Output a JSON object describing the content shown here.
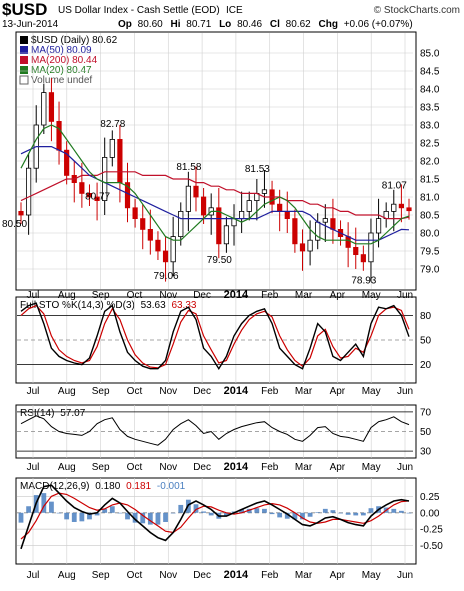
{
  "header": {
    "symbol": "$USD",
    "name": "US Dollar Index - Cash Settle (EOD)",
    "exchange": "ICE",
    "copyright": "© StockCharts.com",
    "date": "13-Jun-2014",
    "ohlc": [
      {
        "label": "Op",
        "value": "80.60"
      },
      {
        "label": "Hi",
        "value": "80.71"
      },
      {
        "label": "Lo",
        "value": "80.46"
      },
      {
        "label": "Cl",
        "value": "80.62"
      }
    ],
    "chg_label": "Chg",
    "chg_value": "+0.06 (+0.07%)"
  },
  "colors": {
    "price": "#000000",
    "up_candle": "#000000",
    "down_candle": "#cc0000",
    "ma50": "#1f1f9e",
    "ma200": "#c0102a",
    "ma20": "#1f7a1f",
    "stoch_k": "#000000",
    "stoch_d": "#cc0000",
    "rsi": "#000000",
    "macd_line": "#000000",
    "macd_signal": "#cc0000",
    "macd_hist": "#4a7fc0",
    "frame": "#000000",
    "grid": "#d0d0d0"
  },
  "legend": [
    {
      "label": "$USD (Daily) 80.62",
      "icon": "price-swatch"
    },
    {
      "label": "MA(50) 80.09",
      "icon": "ma50-swatch"
    },
    {
      "label": "MA(200) 80.44",
      "icon": "ma200-swatch"
    },
    {
      "label": "MA(20) 80.47",
      "icon": "ma20-swatch"
    },
    {
      "label": "Volume undef",
      "icon": "volume-swatch"
    }
  ],
  "x_labels": [
    "Jul",
    "Aug",
    "Sep",
    "Oct",
    "Nov",
    "Dec",
    "2014",
    "Feb",
    "Mar",
    "Apr",
    "May",
    "Jun"
  ],
  "chart_data": [
    {
      "type": "candlestick",
      "title": "$USD (Daily) 80.62",
      "ylim": [
        78.5,
        85.5
      ],
      "yticks": [
        "85.0",
        "84.5",
        "84.0",
        "83.5",
        "83.0",
        "82.5",
        "82.0",
        "81.5",
        "81.0",
        "80.5",
        "80.0",
        "79.5",
        "79.0"
      ],
      "annotations": [
        {
          "label": "80.50",
          "x": 0,
          "y": 80.5
        },
        {
          "label": "82.78",
          "x": 12,
          "y": 82.78
        },
        {
          "label": "80.77",
          "x": 10,
          "y": 80.77
        },
        {
          "label": "79.06",
          "x": 19,
          "y": 79.06
        },
        {
          "label": "81.58",
          "x": 22,
          "y": 81.58
        },
        {
          "label": "79.50",
          "x": 26,
          "y": 79.5
        },
        {
          "label": "81.53",
          "x": 31,
          "y": 81.53
        },
        {
          "label": "78.93",
          "x": 45,
          "y": 78.93
        },
        {
          "label": "81.07",
          "x": 49,
          "y": 81.07
        }
      ],
      "close": [
        80.5,
        81.8,
        83.0,
        83.9,
        83.1,
        82.3,
        81.6,
        81.4,
        81.1,
        81.0,
        80.9,
        82.1,
        82.6,
        81.4,
        80.7,
        80.4,
        80.1,
        79.8,
        79.5,
        79.2,
        79.9,
        80.6,
        81.3,
        81.0,
        80.5,
        80.7,
        79.7,
        80.2,
        80.4,
        80.6,
        80.9,
        81.1,
        81.2,
        80.8,
        80.6,
        80.4,
        79.7,
        79.5,
        79.8,
        80.3,
        80.4,
        80.1,
        79.9,
        79.6,
        79.4,
        79.2,
        80.0,
        80.4,
        80.6,
        80.8,
        80.7,
        80.62
      ],
      "ma50": [
        82.2,
        82.3,
        82.4,
        82.4,
        82.4,
        82.3,
        82.2,
        82.0,
        81.8,
        81.6,
        81.5,
        81.4,
        81.3,
        81.2,
        81.1,
        81.0,
        80.9,
        80.8,
        80.7,
        80.6,
        80.5,
        80.4,
        80.4,
        80.4,
        80.4,
        80.4,
        80.4,
        80.4,
        80.4,
        80.4,
        80.4,
        80.4,
        80.5,
        80.6,
        80.6,
        80.6,
        80.6,
        80.6,
        80.5,
        80.3,
        80.2,
        80.1,
        80.0,
        79.9,
        79.8,
        79.8,
        79.8,
        79.8,
        79.9,
        80.0,
        80.1,
        80.09
      ],
      "ma200": [
        80.9,
        81.0,
        81.1,
        81.2,
        81.3,
        81.4,
        81.5,
        81.5,
        81.6,
        81.6,
        81.6,
        81.7,
        81.7,
        81.7,
        81.7,
        81.7,
        81.6,
        81.6,
        81.6,
        81.6,
        81.5,
        81.5,
        81.5,
        81.4,
        81.4,
        81.3,
        81.3,
        81.2,
        81.2,
        81.1,
        81.1,
        81.1,
        81.0,
        81.0,
        81.0,
        80.9,
        80.9,
        80.9,
        80.8,
        80.8,
        80.7,
        80.7,
        80.6,
        80.6,
        80.5,
        80.5,
        80.5,
        80.5,
        80.4,
        80.4,
        80.4,
        80.44
      ],
      "ma20": [
        81.8,
        82.2,
        82.6,
        82.9,
        83.0,
        82.9,
        82.6,
        82.3,
        82.0,
        81.7,
        81.5,
        81.4,
        81.4,
        81.4,
        81.3,
        81.1,
        80.8,
        80.5,
        80.2,
        79.9,
        79.8,
        79.8,
        80.0,
        80.2,
        80.4,
        80.6,
        80.6,
        80.5,
        80.4,
        80.3,
        80.4,
        80.6,
        80.8,
        80.9,
        81.0,
        80.9,
        80.7,
        80.4,
        80.1,
        79.9,
        79.8,
        79.8,
        79.8,
        79.8,
        79.7,
        79.7,
        79.7,
        79.8,
        80.0,
        80.2,
        80.4,
        80.47
      ]
    },
    {
      "type": "line",
      "title": "Full STO %K(14,3) %D(3)",
      "value_k": "53.63",
      "value_d": "63.33",
      "ylim": [
        0,
        100
      ],
      "yticks": [
        "80",
        "50",
        "20"
      ],
      "series": [
        {
          "name": "%K",
          "values": [
            85,
            92,
            95,
            70,
            40,
            30,
            25,
            22,
            20,
            28,
            55,
            85,
            92,
            60,
            35,
            25,
            18,
            15,
            15,
            25,
            60,
            85,
            90,
            75,
            40,
            30,
            15,
            30,
            55,
            70,
            80,
            85,
            88,
            70,
            40,
            30,
            20,
            15,
            40,
            70,
            60,
            30,
            25,
            35,
            45,
            30,
            70,
            90,
            88,
            92,
            80,
            54
          ]
        },
        {
          "name": "%D",
          "values": [
            80,
            88,
            92,
            82,
            55,
            38,
            30,
            25,
            22,
            25,
            42,
            70,
            88,
            75,
            50,
            32,
            22,
            17,
            16,
            20,
            45,
            72,
            86,
            82,
            55,
            38,
            22,
            25,
            45,
            62,
            75,
            82,
            85,
            78,
            55,
            38,
            25,
            18,
            28,
            55,
            63,
            42,
            28,
            30,
            40,
            35,
            55,
            80,
            88,
            90,
            86,
            63
          ]
        }
      ]
    },
    {
      "type": "line",
      "title": "RSI(14)",
      "value": "57.07",
      "ylim": [
        25,
        75
      ],
      "yticks": [
        "70",
        "50",
        "30"
      ],
      "series": [
        {
          "name": "RSI(14)",
          "values": [
            58,
            62,
            66,
            63,
            55,
            50,
            48,
            47,
            46,
            50,
            58,
            62,
            64,
            52,
            45,
            42,
            40,
            38,
            36,
            42,
            52,
            58,
            62,
            56,
            48,
            50,
            42,
            48,
            52,
            55,
            57,
            59,
            60,
            54,
            50,
            47,
            42,
            40,
            46,
            54,
            55,
            48,
            45,
            44,
            42,
            40,
            54,
            60,
            62,
            65,
            60,
            57
          ]
        }
      ]
    },
    {
      "type": "line",
      "title": "MACD(12,26,9)",
      "value_macd": "0.180",
      "value_signal": "0.181",
      "value_hist": "-0.001",
      "ylim": [
        -0.75,
        0.5
      ],
      "yticks": [
        "0.25",
        "0.00",
        "-0.25",
        "-0.50"
      ],
      "series": [
        {
          "name": "MACD",
          "values": [
            -0.55,
            -0.2,
            0.15,
            0.4,
            0.42,
            0.3,
            0.18,
            0.08,
            0.02,
            -0.02,
            0.0,
            0.12,
            0.22,
            0.15,
            0.02,
            -0.1,
            -0.2,
            -0.3,
            -0.38,
            -0.42,
            -0.3,
            -0.1,
            0.12,
            0.18,
            0.12,
            0.05,
            -0.05,
            -0.05,
            0.0,
            0.05,
            0.1,
            0.15,
            0.18,
            0.12,
            0.05,
            -0.02,
            -0.1,
            -0.18,
            -0.2,
            -0.15,
            -0.08,
            -0.06,
            -0.1,
            -0.15,
            -0.18,
            -0.2,
            -0.05,
            0.05,
            0.12,
            0.18,
            0.2,
            0.18
          ]
        },
        {
          "name": "Signal",
          "values": [
            -0.4,
            -0.3,
            -0.12,
            0.1,
            0.25,
            0.3,
            0.28,
            0.22,
            0.15,
            0.08,
            0.04,
            0.06,
            0.12,
            0.15,
            0.12,
            0.05,
            -0.04,
            -0.12,
            -0.2,
            -0.28,
            -0.3,
            -0.22,
            -0.08,
            0.05,
            0.1,
            0.09,
            0.04,
            0.0,
            -0.02,
            0.0,
            0.04,
            0.08,
            0.12,
            0.14,
            0.12,
            0.07,
            0.0,
            -0.08,
            -0.14,
            -0.16,
            -0.14,
            -0.1,
            -0.1,
            -0.12,
            -0.14,
            -0.16,
            -0.12,
            -0.05,
            0.04,
            0.12,
            0.17,
            0.181
          ]
        }
      ]
    }
  ]
}
